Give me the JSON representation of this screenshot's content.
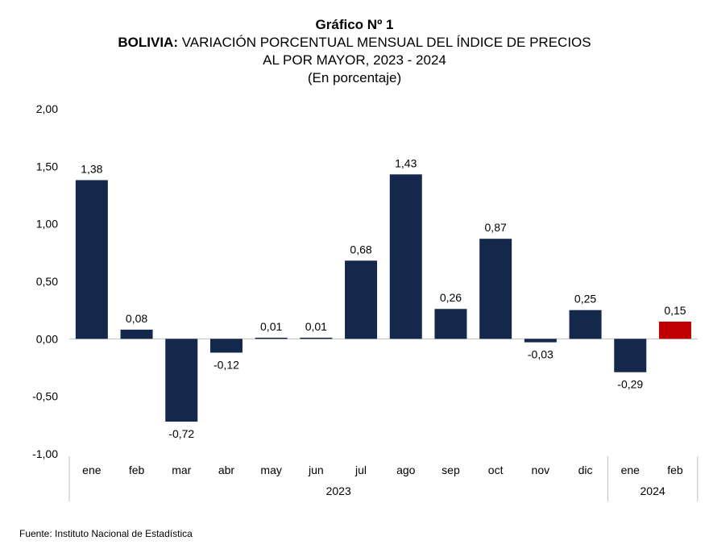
{
  "chart_data": {
    "type": "bar",
    "title": "Gráfico Nº 1",
    "subtitle_country": "BOLIVIA:",
    "subtitle_rest": "VARIACIÓN PORCENTUAL MENSUAL DEL ÍNDICE DE PRECIOS",
    "subtitle_line2": "AL POR MAYOR, 2023 - 2024",
    "subtitle_line3": "(En porcentaje)",
    "categories": [
      "ene",
      "feb",
      "mar",
      "abr",
      "may",
      "jun",
      "jul",
      "ago",
      "sep",
      "oct",
      "nov",
      "dic",
      "ene",
      "feb"
    ],
    "year_groups": [
      {
        "label": "2023",
        "start": 0,
        "count": 12
      },
      {
        "label": "2024",
        "start": 12,
        "count": 2
      }
    ],
    "values": [
      1.38,
      0.08,
      -0.72,
      -0.12,
      0.01,
      0.01,
      0.68,
      1.43,
      0.26,
      0.87,
      -0.03,
      0.25,
      -0.29,
      0.15
    ],
    "data_labels": [
      "1,38",
      "0,08",
      "-0,72",
      "-0,12",
      "0,01",
      "0,01",
      "0,68",
      "1,43",
      "0,26",
      "0,87",
      "-0,03",
      "0,25",
      "-0,29",
      "0,15"
    ],
    "highlight_index": 13,
    "colors": {
      "bar": "#14284B",
      "highlight": "#C00000"
    },
    "ylim": [
      -1.0,
      2.0
    ],
    "yticks": [
      2.0,
      1.5,
      1.0,
      0.5,
      0.0,
      -0.5,
      -1.0
    ],
    "ytick_labels": [
      "2,00",
      "1,50",
      "1,00",
      "0,50",
      "0,00",
      "-0,50",
      "-1,00"
    ],
    "grid": false,
    "xlabel": "",
    "ylabel": ""
  },
  "source": "Fuente: Instituto Nacional de Estadística"
}
